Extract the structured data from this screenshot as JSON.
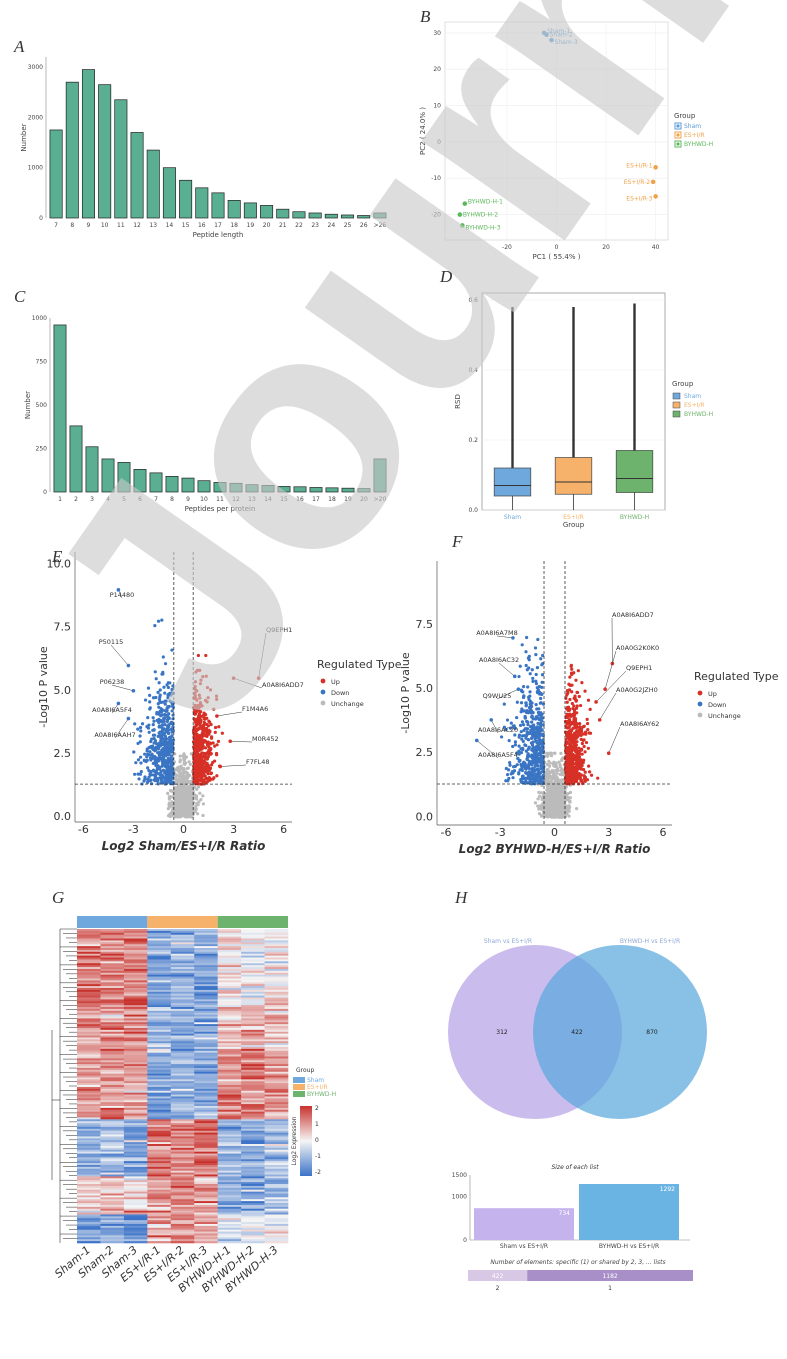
{
  "panel_labels": [
    "A",
    "B",
    "C",
    "D",
    "E",
    "F",
    "G",
    "H"
  ],
  "watermark": "Journal",
  "chart_data": [
    {
      "panel": "A",
      "type": "bar",
      "categories": [
        "7",
        "8",
        "9",
        "10",
        "11",
        "12",
        "13",
        "14",
        "15",
        "16",
        "17",
        "18",
        "19",
        "20",
        "21",
        "22",
        "23",
        "24",
        "25",
        "26",
        ">26"
      ],
      "values": [
        1750,
        2700,
        2950,
        2650,
        2350,
        1700,
        1350,
        1000,
        750,
        600,
        500,
        350,
        300,
        250,
        175,
        125,
        100,
        75,
        60,
        50,
        100
      ],
      "xlabel": "Peptide length",
      "ylabel": "Number",
      "yticks": [
        0,
        1000,
        2000,
        3000
      ],
      "ylim": [
        0,
        3200
      ],
      "bar_color": "#5aae91"
    },
    {
      "panel": "B",
      "type": "scatter",
      "xlabel": "PC1 ( 55.4% )",
      "ylabel": "PC2 ( 24.0% )",
      "xlim": [
        -45,
        45
      ],
      "ylim": [
        -27,
        33
      ],
      "xticks": [
        -20,
        0,
        20,
        40
      ],
      "yticks": [
        -20,
        -10,
        0,
        10,
        20,
        30
      ],
      "legend_title": "Group",
      "groups": [
        {
          "name": "Sham",
          "color": "#5b9bd5",
          "points": [
            [
              -5,
              30
            ],
            [
              -4,
              29.5
            ],
            [
              -2,
              28
            ]
          ],
          "labels": [
            "Sham-1",
            "Sham-2",
            "Sham-3"
          ]
        },
        {
          "name": "ES+I/R",
          "color": "#f0a24b",
          "points": [
            [
              40,
              -7
            ],
            [
              39,
              -11
            ],
            [
              40,
              -15
            ]
          ],
          "labels": [
            "ES+I/R-1",
            "ES+I/R-2",
            "ES+I/R-3"
          ]
        },
        {
          "name": "BYHWD-H",
          "color": "#5cb85c",
          "points": [
            [
              -37,
              -17
            ],
            [
              -39,
              -20
            ],
            [
              -38,
              -23
            ]
          ],
          "labels": [
            "BYHWD-H-1",
            "BYHWD-H-2",
            "BYHWD-H-3"
          ]
        }
      ]
    },
    {
      "panel": "C",
      "type": "bar",
      "categories": [
        "1",
        "2",
        "3",
        "4",
        "5",
        "6",
        "7",
        "8",
        "9",
        "10",
        "11",
        "12",
        "13",
        "14",
        "15",
        "16",
        "17",
        "18",
        "19",
        "20",
        ">20"
      ],
      "values": [
        960,
        380,
        260,
        190,
        170,
        130,
        110,
        90,
        80,
        65,
        55,
        50,
        42,
        38,
        32,
        30,
        26,
        24,
        22,
        20,
        190
      ],
      "xlabel": "Peptides per protein",
      "ylabel": "Number",
      "yticks": [
        0,
        250,
        500,
        750,
        1000
      ],
      "ylim": [
        0,
        1000
      ],
      "bar_color": "#5aae91"
    },
    {
      "panel": "D",
      "type": "box",
      "categories": [
        "Sham",
        "ES+I/R",
        "BYHWD-H"
      ],
      "colors": [
        "#6fa8dc",
        "#f6b26b",
        "#6db36d"
      ],
      "boxes": [
        {
          "q1": 0.04,
          "median": 0.07,
          "q3": 0.12,
          "whisker_high": 0.58,
          "whisker_low": 0.0
        },
        {
          "q1": 0.045,
          "median": 0.08,
          "q3": 0.15,
          "whisker_high": 0.58,
          "whisker_low": 0.0
        },
        {
          "q1": 0.05,
          "median": 0.09,
          "q3": 0.17,
          "whisker_high": 0.59,
          "whisker_low": 0.0
        }
      ],
      "xlabel": "Group",
      "ylabel": "RSD",
      "ylim": [
        0,
        0.62
      ],
      "yticks": [
        0,
        0.2,
        0.4,
        0.6
      ],
      "legend_title": "Group"
    },
    {
      "panel": "E",
      "type": "scatter",
      "xlabel": "Log2 Sham/ES+I/R Ratio",
      "ylabel": "-Log10 P value",
      "xlim": [
        -6.5,
        6.5
      ],
      "ylim": [
        -0.2,
        10.5
      ],
      "xticks": [
        -6,
        -3,
        0,
        3,
        6
      ],
      "yticks": [
        0.0,
        2.5,
        5.0,
        7.5,
        10.0
      ],
      "thresholds": {
        "x": [
          -0.58,
          0.58
        ],
        "y": 1.3
      },
      "legend_title": "Regulated Type",
      "legend": [
        {
          "name": "Up",
          "color": "#d73027"
        },
        {
          "name": "Down",
          "color": "#3a75c4"
        },
        {
          "name": "Unchange",
          "color": "#bbbbbb"
        }
      ],
      "annotations": [
        {
          "text": "P14480",
          "x": -3.9,
          "y": 9.0
        },
        {
          "text": "P50115",
          "x": -3.3,
          "y": 6.0
        },
        {
          "text": "P06238",
          "x": -3.0,
          "y": 5.0
        },
        {
          "text": "A0A8I6A5F4",
          "x": -3.9,
          "y": 4.5
        },
        {
          "text": "A0A8I6AAH7",
          "x": -3.3,
          "y": 3.9
        },
        {
          "text": "Q9EPH1",
          "x": 4.5,
          "y": 5.5
        },
        {
          "text": "A0A8I6ADD7",
          "x": 3.0,
          "y": 5.5
        },
        {
          "text": "F1M4A6",
          "x": 2.0,
          "y": 4.0
        },
        {
          "text": "M0R452",
          "x": 2.8,
          "y": 3.0
        },
        {
          "text": "F7FL48",
          "x": 2.2,
          "y": 2.0
        }
      ]
    },
    {
      "panel": "F",
      "type": "scatter",
      "xlabel": "Log2 BYHWD-H/ES+I/R Ratio",
      "ylabel": "-Log10 P value",
      "xlim": [
        -6.5,
        6.5
      ],
      "ylim": [
        -0.3,
        10.0
      ],
      "xticks": [
        -6,
        -3,
        0,
        3,
        6
      ],
      "yticks": [
        0.0,
        2.5,
        5.0,
        7.5
      ],
      "thresholds": {
        "x": [
          -0.58,
          0.58
        ],
        "y": 1.3
      },
      "legend_title": "Regulated Type",
      "legend": [
        {
          "name": "Up",
          "color": "#d73027"
        },
        {
          "name": "Down",
          "color": "#3a75c4"
        },
        {
          "name": "Unchange",
          "color": "#bbbbbb"
        }
      ],
      "annotations": [
        {
          "text": "A0A8I6A7M8",
          "x": -2.3,
          "y": 7.0
        },
        {
          "text": "A0A8I6AC32",
          "x": -2.2,
          "y": 5.5
        },
        {
          "text": "Q9WU25",
          "x": -2.0,
          "y": 5.0
        },
        {
          "text": "A0A8I6AC20",
          "x": -3.5,
          "y": 3.8
        },
        {
          "text": "A0A8I6A5F4",
          "x": -4.3,
          "y": 3.0
        },
        {
          "text": "A0A8I6ADD7",
          "x": 3.2,
          "y": 6.0
        },
        {
          "text": "A0A0G2K0K0",
          "x": 2.8,
          "y": 5.0
        },
        {
          "text": "Q9EPH1",
          "x": 2.3,
          "y": 4.5
        },
        {
          "text": "A0A0G2JZH0",
          "x": 2.5,
          "y": 3.8
        },
        {
          "text": "A0A8I6AY62",
          "x": 3.0,
          "y": 2.5
        }
      ]
    },
    {
      "panel": "G",
      "type": "heatmap",
      "columns": [
        "Sham-1",
        "Sham-2",
        "Sham-3",
        "ES+I/R-1",
        "ES+I/R-2",
        "ES+I/R-3",
        "BYHWD-H-1",
        "BYHWD-H-2",
        "BYHWD-H-3"
      ],
      "group_colors": [
        "#6fa8dc",
        "#f6b26b",
        "#6db36d"
      ],
      "row_blocks": [
        {
          "rows": 40,
          "pattern": [
            1.2,
            1.1,
            1.3,
            -1.2,
            -1.0,
            -1.1,
            0.2,
            -0.1,
            0.1
          ]
        },
        {
          "rows": 25,
          "pattern": [
            0.9,
            1.0,
            1.1,
            -0.8,
            -1.2,
            -0.9,
            0.6,
            0.8,
            0.4
          ]
        },
        {
          "rows": 35,
          "pattern": [
            0.8,
            1.0,
            0.7,
            -1.3,
            -1.0,
            -1.2,
            1.1,
            1.2,
            1.0
          ]
        },
        {
          "rows": 30,
          "pattern": [
            -1.0,
            -0.8,
            -1.2,
            1.3,
            1.2,
            1.4,
            -0.9,
            -1.1,
            -0.8
          ]
        },
        {
          "rows": 20,
          "pattern": [
            0.3,
            0.5,
            0.2,
            1.0,
            1.1,
            0.9,
            -1.0,
            -1.2,
            -0.9
          ]
        },
        {
          "rows": 15,
          "pattern": [
            -1.4,
            -1.2,
            -1.3,
            0.7,
            0.9,
            0.8,
            -0.3,
            -0.2,
            -0.1
          ]
        }
      ],
      "legend_group_title": "Group",
      "legend_groups": [
        "Sham",
        "ES+I/R",
        "BYHWD-H"
      ],
      "legend_scale_title": "Log2 Expression",
      "legend_scale_ticks": [
        2,
        1,
        0,
        -1,
        -2
      ]
    },
    {
      "panel": "H",
      "type": "venn",
      "sets": [
        {
          "name": "Sham vs ES+I/R",
          "color": "#b9a6e8",
          "only": 312
        },
        {
          "name": "BYHWD-H vs ES+I/R",
          "color": "#5aa8dd",
          "only": 870
        }
      ],
      "intersection": 422,
      "bar_title": "Size of each list",
      "bar_categories": [
        "Sham vs ES+I/R",
        "BYHWD-H vs ES+I/R"
      ],
      "bar_values": [
        734,
        1292
      ],
      "bar_yticks": [
        0,
        1000,
        1500
      ],
      "bar_colors": [
        "#c4b3ec",
        "#6ab4e3"
      ],
      "shared_title": "Number of elements: specific (1) or shared by 2, 3, ... lists",
      "shared_segments": [
        {
          "label": "2",
          "value": 422,
          "color": "#d9c7e6"
        },
        {
          "label": "1",
          "value": 1182,
          "color": "#a98fc8"
        }
      ]
    }
  ]
}
